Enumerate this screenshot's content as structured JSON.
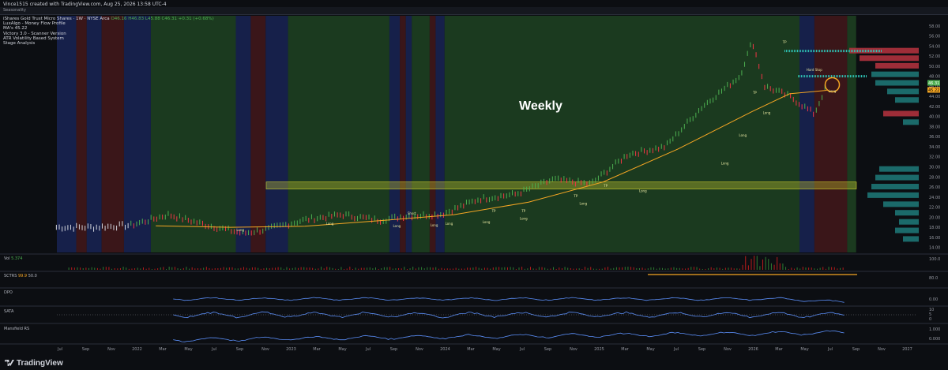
{
  "header": {
    "title": "Vince1515 created with TradingView.com, Aug 25, 2026 13:58 UTC-4",
    "strip_label": "Seasonality"
  },
  "legend": {
    "symbol_line": "iShares Gold Trust Micro Shares · 1W · NYSE Arca",
    "ohlc": "O46.16 H46.83 L45.88 C46.31 +0.31 (+0.68%)",
    "indicators": [
      "LuxAlgo - Money Flow Profile",
      "MA's 45.22",
      "Victory 3.0 - Scanner Version",
      "ATR Volatility Based System",
      "Stage Analysis"
    ]
  },
  "annotation_text": "Weekly",
  "footer": {
    "brand": "TradingView"
  },
  "panes": {
    "volume": {
      "label": "Vol",
      "value": "5.374"
    },
    "sctr": {
      "label": "SCTRS",
      "value1": "99.9",
      "value2": "50.0"
    },
    "dpo": {
      "label": "DPO"
    },
    "sata": {
      "label": "SATA"
    },
    "mansfield": {
      "label": "Mansfield RS"
    }
  },
  "colors": {
    "up": "#4caf50",
    "down": "#f23645",
    "ma": "#f5a623",
    "bg_green": "#1b3a1f",
    "bg_red": "#3a1619",
    "bg_blue": "#16204a",
    "zone": "#cfcf2f",
    "osc": "#5b8ff9"
  },
  "chart_data": {
    "type": "line",
    "title": "",
    "price_axis": [
      "58.00",
      "56.00",
      "54.00",
      "52.00",
      "50.00",
      "48.00",
      "46.00",
      "44.00",
      "42.00",
      "40.00",
      "38.00",
      "36.00",
      "34.00",
      "32.00",
      "30.00",
      "28.00",
      "26.00",
      "24.00",
      "22.00",
      "20.00",
      "18.00",
      "16.00",
      "14.00"
    ],
    "ylim": [
      13,
      60
    ],
    "current_price": "46.31",
    "ma_label": "45.22",
    "x_labels": [
      "Jul",
      "Sep",
      "Nov",
      "2022",
      "Mar",
      "May",
      "Jul",
      "Sep",
      "Nov",
      "2023",
      "Mar",
      "May",
      "Jul",
      "Sep",
      "Nov",
      "2024",
      "Mar",
      "May",
      "Jul",
      "Sep",
      "Nov",
      "2025",
      "Mar",
      "May",
      "Jul",
      "Sep",
      "Nov",
      "2026",
      "Mar",
      "May",
      "Jul",
      "Sep",
      "Nov",
      "2027"
    ],
    "series": [
      {
        "name": "price",
        "x": [
          "2021-06",
          "2021-09",
          "2021-12",
          "2022-03",
          "2022-06",
          "2022-09",
          "2022-11",
          "2023-02",
          "2023-05",
          "2023-08",
          "2023-10",
          "2024-01",
          "2024-04",
          "2024-07",
          "2024-10",
          "2025-01",
          "2025-04",
          "2025-07",
          "2025-10",
          "2026-01",
          "2026-02",
          "2026-03",
          "2026-05",
          "2026-07",
          "2026-08"
        ],
        "values": [
          18.0,
          18.0,
          18.4,
          20.5,
          18.5,
          16.8,
          17.6,
          19.5,
          20.5,
          19.4,
          20.2,
          20.6,
          23.6,
          24.6,
          27.5,
          26.6,
          32.5,
          34.0,
          42.0,
          48.0,
          55.0,
          46.0,
          44.0,
          40.5,
          46.3
        ]
      },
      {
        "name": "ma",
        "x": [
          "2022-02",
          "2022-08",
          "2023-02",
          "2023-08",
          "2024-02",
          "2024-08",
          "2025-02",
          "2025-08",
          "2026-02",
          "2026-05",
          "2026-08"
        ],
        "values": [
          18.3,
          18.0,
          18.2,
          19.3,
          20.5,
          23.0,
          27.0,
          33.5,
          41.0,
          44.5,
          45.2
        ]
      }
    ],
    "zone": {
      "low": 25.6,
      "high": 27.0
    },
    "signals": [
      "Long",
      "Long",
      "Long",
      "Long",
      "Long",
      "Long",
      "Long",
      "Long",
      "Long",
      "Long",
      "Long",
      "Long",
      "Long",
      "TP",
      "TP",
      "TP",
      "TP",
      "TP",
      "TP",
      "Short",
      "Hard Stop"
    ],
    "volume_axis": [
      "100.0"
    ],
    "sctr_axis": [
      "80.0"
    ],
    "dpo_axis": [
      "0.00"
    ],
    "sata_axis": [
      "10",
      "5",
      "0"
    ],
    "mansfield_axis": [
      "1.000",
      "0.000"
    ]
  }
}
